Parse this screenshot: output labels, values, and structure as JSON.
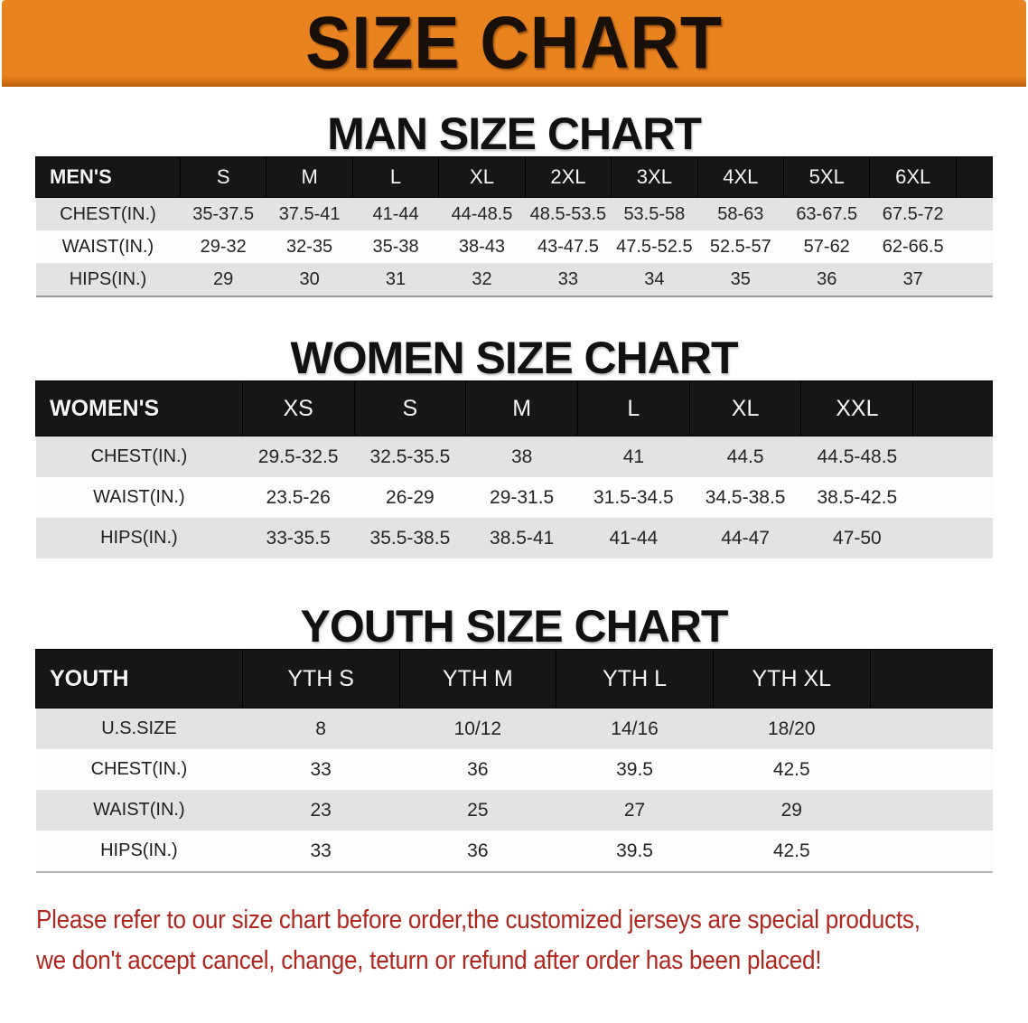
{
  "banner": {
    "title": "SIZE CHART"
  },
  "colors": {
    "banner_bg": "#E8831F",
    "header_bar_bg": "#171616",
    "row_alt_bg": "#E3E3E3",
    "row_bg": "#FDFDFD",
    "disclaimer_red": "#B1271E"
  },
  "men": {
    "heading": "MAN SIZE CHART",
    "table": {
      "label": "MEN'S",
      "columns": [
        "S",
        "M",
        "L",
        "XL",
        "2XL",
        "3XL",
        "4XL",
        "5XL",
        "6XL"
      ],
      "rows": [
        {
          "label": "CHEST(IN.)",
          "values": [
            "35-37.5",
            "37.5-41",
            "41-44",
            "44-48.5",
            "48.5-53.5",
            "53.5-58",
            "58-63",
            "63-67.5",
            "67.5-72"
          ]
        },
        {
          "label": "WAIST(IN.)",
          "values": [
            "29-32",
            "32-35",
            "35-38",
            "38-43",
            "43-47.5",
            "47.5-52.5",
            "52.5-57",
            "57-62",
            "62-66.5"
          ]
        },
        {
          "label": "HIPS(IN.)",
          "values": [
            "29",
            "30",
            "31",
            "32",
            "33",
            "34",
            "35",
            "36",
            "37"
          ]
        }
      ]
    }
  },
  "women": {
    "heading": "WOMEN SIZE CHART",
    "table": {
      "label": "WOMEN'S",
      "columns": [
        "XS",
        "S",
        "M",
        "L",
        "XL",
        "XXL"
      ],
      "rows": [
        {
          "label": "CHEST(IN.)",
          "values": [
            "29.5-32.5",
            "32.5-35.5",
            "38",
            "41",
            "44.5",
            "44.5-48.5"
          ]
        },
        {
          "label": "WAIST(IN.)",
          "values": [
            "23.5-26",
            "26-29",
            "29-31.5",
            "31.5-34.5",
            "34.5-38.5",
            "38.5-42.5"
          ]
        },
        {
          "label": "HIPS(IN.)",
          "values": [
            "33-35.5",
            "35.5-38.5",
            "38.5-41",
            "41-44",
            "44-47",
            "47-50"
          ]
        }
      ]
    }
  },
  "youth": {
    "heading": "YOUTH SIZE CHART",
    "table": {
      "label": "YOUTH",
      "columns": [
        "YTH S",
        "YTH M",
        "YTH L",
        "YTH XL"
      ],
      "rows": [
        {
          "label": "U.S.SIZE",
          "values": [
            "8",
            "10/12",
            "14/16",
            "18/20"
          ]
        },
        {
          "label": "CHEST(IN.)",
          "values": [
            "33",
            "36",
            "39.5",
            "42.5"
          ]
        },
        {
          "label": "WAIST(IN.)",
          "values": [
            "23",
            "25",
            "27",
            "29"
          ]
        },
        {
          "label": "HIPS(IN.)",
          "values": [
            "33",
            "36",
            "39.5",
            "42.5"
          ]
        }
      ]
    }
  },
  "disclaimer": {
    "line1": "Please refer to our size chart before order,the customized jerseys are special products,",
    "line2": "we don't accept cancel, change, teturn or refund after order has been placed!"
  }
}
